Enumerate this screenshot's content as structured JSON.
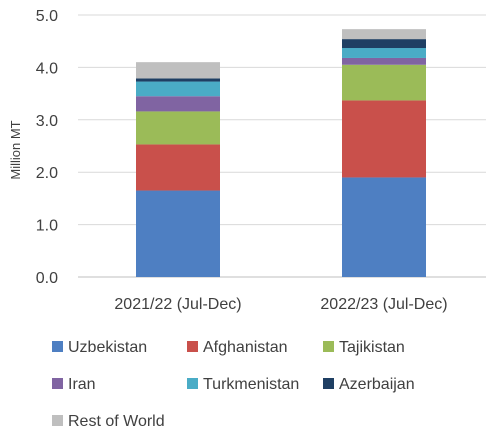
{
  "chart_data": {
    "type": "bar",
    "stacked": true,
    "categories": [
      "2021/22 (Jul-Dec)",
      "2022/23 (Jul-Dec)"
    ],
    "series": [
      {
        "name": "Uzbekistan",
        "color": "#4e7fc2",
        "values": [
          1.65,
          1.9
        ]
      },
      {
        "name": "Afghanistan",
        "color": "#c9504b",
        "values": [
          0.88,
          1.47
        ]
      },
      {
        "name": "Tajikistan",
        "color": "#9bbb58",
        "values": [
          0.63,
          0.68
        ]
      },
      {
        "name": "Iran",
        "color": "#8064a2",
        "values": [
          0.29,
          0.13
        ]
      },
      {
        "name": "Turkmenistan",
        "color": "#4aacc6",
        "values": [
          0.28,
          0.19
        ]
      },
      {
        "name": "Azerbaijan",
        "color": "#1f3f63",
        "values": [
          0.06,
          0.17
        ]
      },
      {
        "name": "Rest of World",
        "color": "#bfbfbf",
        "values": [
          0.31,
          0.19
        ]
      }
    ],
    "ylabel": "Million MT",
    "ylim": [
      0,
      5
    ],
    "yticks": [
      "0.0",
      "1.0",
      "2.0",
      "3.0",
      "4.0",
      "5.0"
    ],
    "grid": true,
    "legend": "bottom"
  }
}
